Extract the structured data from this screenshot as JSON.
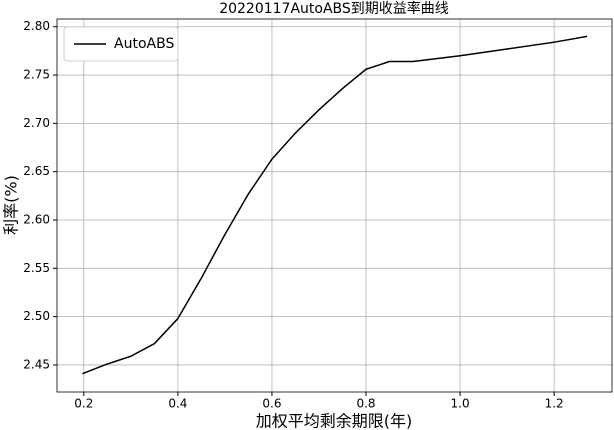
{
  "chart_data": {
    "type": "line",
    "title": "20220117AutoABS到期收益率曲线",
    "x_label": "加权平均剩余期限(年)",
    "y_label": "利率(%)",
    "x": [
      0.197,
      0.25,
      0.3,
      0.35,
      0.4,
      0.45,
      0.5,
      0.55,
      0.6,
      0.65,
      0.7,
      0.75,
      0.8,
      0.85,
      0.9,
      1.0,
      1.1,
      1.2,
      1.27
    ],
    "series": [
      {
        "name": "AutoABS",
        "color": "#000000",
        "values": [
          2.441,
          2.451,
          2.459,
          2.472,
          2.498,
          2.54,
          2.585,
          2.627,
          2.663,
          2.69,
          2.714,
          2.736,
          2.756,
          2.764,
          2.764,
          2.77,
          2.777,
          2.784,
          2.79
        ]
      }
    ],
    "xlim": [
      0.143,
      1.323
    ],
    "ylim": [
      2.422,
      2.808
    ],
    "xticks": [
      0.2,
      0.4,
      0.6,
      0.8,
      {
        "value": 1,
        "label": "1.0"
      },
      1.2
    ],
    "yticks": [
      2.45,
      {
        "value": 2.5,
        "label": "2.50"
      },
      2.55,
      {
        "value": 2.6,
        "label": "2.60"
      },
      2.65,
      {
        "value": 2.7,
        "label": "2.70"
      },
      2.75,
      {
        "value": 2.8,
        "label": "2.80"
      }
    ],
    "grid": true,
    "legend": "upper-left"
  }
}
